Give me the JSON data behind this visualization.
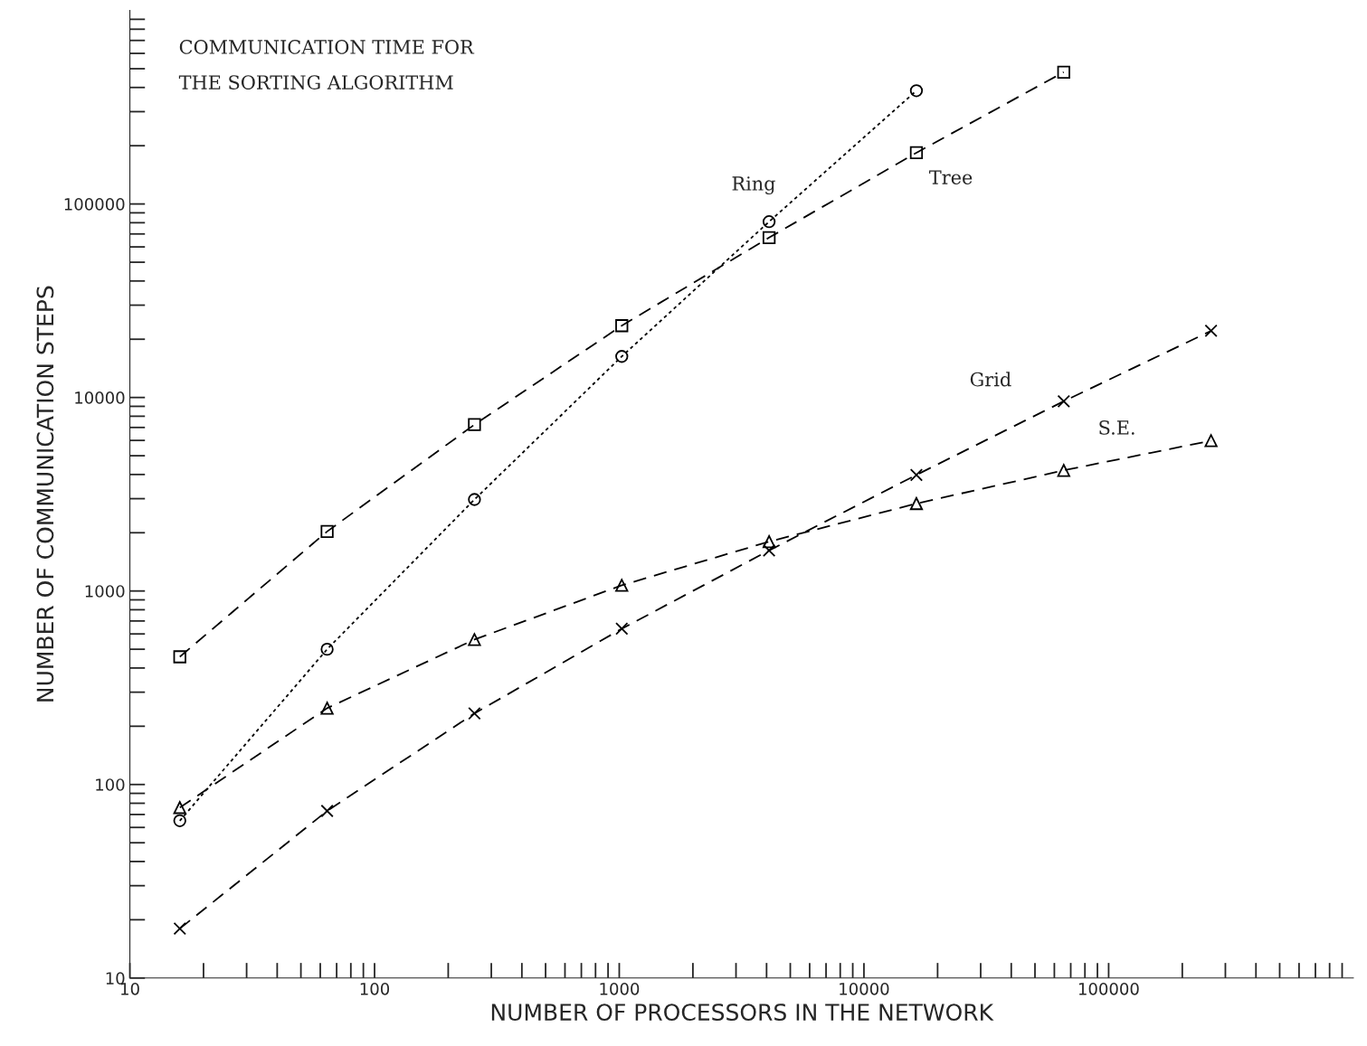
{
  "chart_data": {
    "type": "line",
    "title": "COMMUNICATION TIME FOR\nTHE SORTING ALGORITHM",
    "xlabel": "NUMBER OF PROCESSORS IN THE NETWORK",
    "ylabel": "NUMBER OF COMMUNICATION STEPS",
    "x": [
      16,
      64,
      256,
      1024,
      4096,
      16384,
      65536,
      262144
    ],
    "log": "xy",
    "xlim": [
      10,
      1000000
    ],
    "ylim": [
      10,
      1000000
    ],
    "xticks": [
      10,
      100,
      1000,
      10000,
      100000
    ],
    "yticks": [
      10,
      100,
      1000,
      10000,
      100000
    ],
    "grid": false,
    "legend": false,
    "series": [
      {
        "name": "Ring",
        "color": "#000000",
        "marker": "circle",
        "line_style": "dotted",
        "values": [
          65,
          500,
          2970,
          16300,
          81000,
          385000,
          null,
          null
        ]
      },
      {
        "name": "Tree",
        "color": "#000000",
        "marker": "square",
        "line_style": "dashed",
        "values": [
          457,
          2030,
          7240,
          23500,
          67000,
          184000,
          480000,
          null
        ]
      },
      {
        "name": "Grid",
        "color": "#000000",
        "marker": "cross",
        "line_style": "dashed",
        "values": [
          18,
          73,
          233,
          638,
          1620,
          3980,
          9560,
          22100
        ]
      },
      {
        "name": "S.E.",
        "color": "#000000",
        "marker": "triangle",
        "line_style": "dashed",
        "values": [
          76,
          248,
          561,
          1070,
          1800,
          2830,
          4200,
          5980
        ]
      }
    ]
  }
}
